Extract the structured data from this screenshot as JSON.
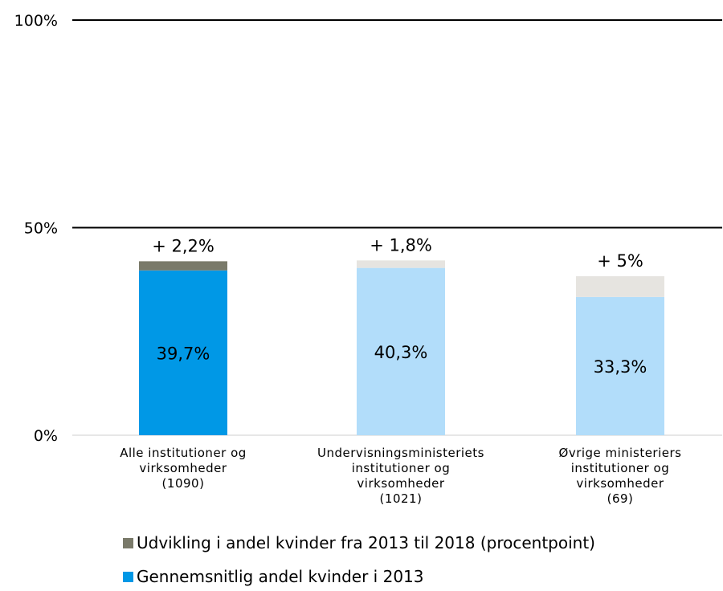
{
  "chart_data": {
    "type": "bar",
    "stacked": true,
    "ylim": [
      0,
      100
    ],
    "yticks": [
      "0%",
      "50%",
      "100%"
    ],
    "grid": true,
    "legend_position": "bottom",
    "categories": [
      [
        "Alle institutioner og",
        "virksomheder",
        "(1090)"
      ],
      [
        "Undervisningsministeriets",
        "institutioner og",
        "virksomheder",
        "(1021)"
      ],
      [
        "Øvrige ministeriers",
        "institutioner og",
        "virksomheder",
        "(69)"
      ]
    ],
    "series": [
      {
        "name": "Gennemsnitlig andel kvinder i 2013",
        "values": [
          39.7,
          40.3,
          33.3
        ],
        "labels": [
          "39,7%",
          "40,3%",
          "33,3%"
        ],
        "colors": [
          "#0098e6",
          "#b2ddfa",
          "#b2ddfa"
        ]
      },
      {
        "name": "Udvikling i andel kvinder fra 2013 til 2018 (procentpoint)",
        "values": [
          2.2,
          1.8,
          5
        ],
        "labels": [
          "+ 2,2%",
          "+ 1,8%",
          "+ 5%"
        ],
        "colors": [
          "#7a7a6a",
          "#e6e4e0",
          "#e6e4e0"
        ]
      }
    ],
    "legend": [
      {
        "label": "Udvikling i andel kvinder fra 2013 til 2018 (procentpoint)",
        "color": "#7a7a6a"
      },
      {
        "label": "Gennemsnitlig andel kvinder i 2013",
        "color": "#0098e6"
      }
    ]
  }
}
